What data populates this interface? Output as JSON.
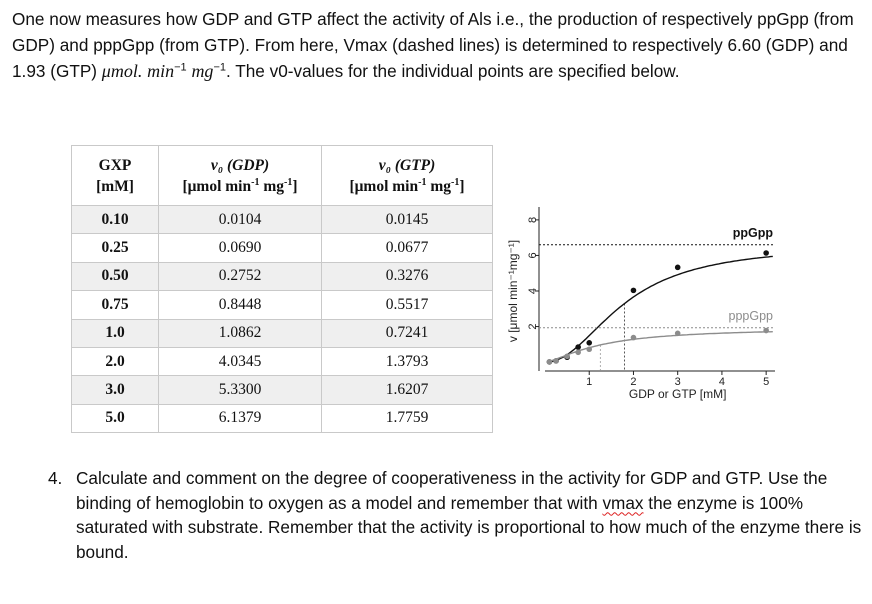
{
  "intro": {
    "seg1": "One now measures how GDP and GTP affect the activity of Als i.e., the production of respectively ppGpp (from GDP) and pppGpp (from GTP). From here, Vmax (dashed lines) is determined to respectively 6.60 (GDP) and 1.93 (GTP) ",
    "unit_umol": "μmol.",
    "unit_min": "min",
    "unit_min_exp": "−1",
    "unit_mg": "mg",
    "unit_mg_exp": "−1",
    "seg2": ". The v0-values for the individual points are specified below."
  },
  "table": {
    "headers": {
      "col0_line1": "GXP",
      "col0_line2": "[mM]",
      "col1_line1": "v₀ (GDP)",
      "col1_line2_a": "[μmol min",
      "col1_line2_exp1": "-1",
      "col1_line2_b": " mg",
      "col1_line2_exp2": "-1",
      "col1_line2_c": "]",
      "col2_line1": "v₀ (GTP)",
      "col2_line2_a": "[μmol min",
      "col2_line2_exp1": "-1",
      "col2_line2_b": " mg",
      "col2_line2_exp2": "-1",
      "col2_line2_c": "]"
    },
    "rows": [
      [
        "0.10",
        "0.0104",
        "0.0145"
      ],
      [
        "0.25",
        "0.0690",
        "0.0677"
      ],
      [
        "0.50",
        "0.2752",
        "0.3276"
      ],
      [
        "0.75",
        "0.8448",
        "0.5517"
      ],
      [
        "1.0",
        "1.0862",
        "0.7241"
      ],
      [
        "2.0",
        "4.0345",
        "1.3793"
      ],
      [
        "3.0",
        "5.3300",
        "1.6207"
      ],
      [
        "5.0",
        "6.1379",
        "1.7759"
      ]
    ]
  },
  "chart_data": {
    "type": "scatter",
    "title": "",
    "xlabel": "GDP or GTP [mM]",
    "ylabel": "v [μmol min⁻¹mg⁻¹]",
    "xlim": [
      0,
      5.2
    ],
    "ylim": [
      -0.5,
      8.5
    ],
    "x_ticks": [
      1,
      2,
      3,
      4,
      5
    ],
    "y_ticks": [
      2,
      4,
      6,
      8
    ],
    "grid": false,
    "series": [
      {
        "name": "ppGpp",
        "color": "#111111",
        "x": [
          0.1,
          0.25,
          0.5,
          0.75,
          1.0,
          2.0,
          3.0,
          5.0
        ],
        "y": [
          0.0104,
          0.069,
          0.2752,
          0.8448,
          1.0862,
          4.0345,
          5.33,
          6.1379
        ],
        "vmax": 6.6
      },
      {
        "name": "pppGpp",
        "color": "#8c8c8c",
        "x": [
          0.1,
          0.25,
          0.5,
          0.75,
          1.0,
          2.0,
          3.0,
          5.0
        ],
        "y": [
          0.0145,
          0.0677,
          0.3276,
          0.5517,
          0.7241,
          1.3793,
          1.6207,
          1.7759
        ],
        "vmax": 1.93
      }
    ]
  },
  "question": {
    "number": "4.",
    "text_a": "Calculate and comment on the degree of cooperativeness in the activity for GDP and GTP. Use the binding of hemoglobin to oxygen as a model and remember that with ",
    "vmax_word": "vmax",
    "text_b": " the enzyme is 100% saturated with substrate. Remember that the activity is proportional to how much of the enzyme there is bound."
  }
}
